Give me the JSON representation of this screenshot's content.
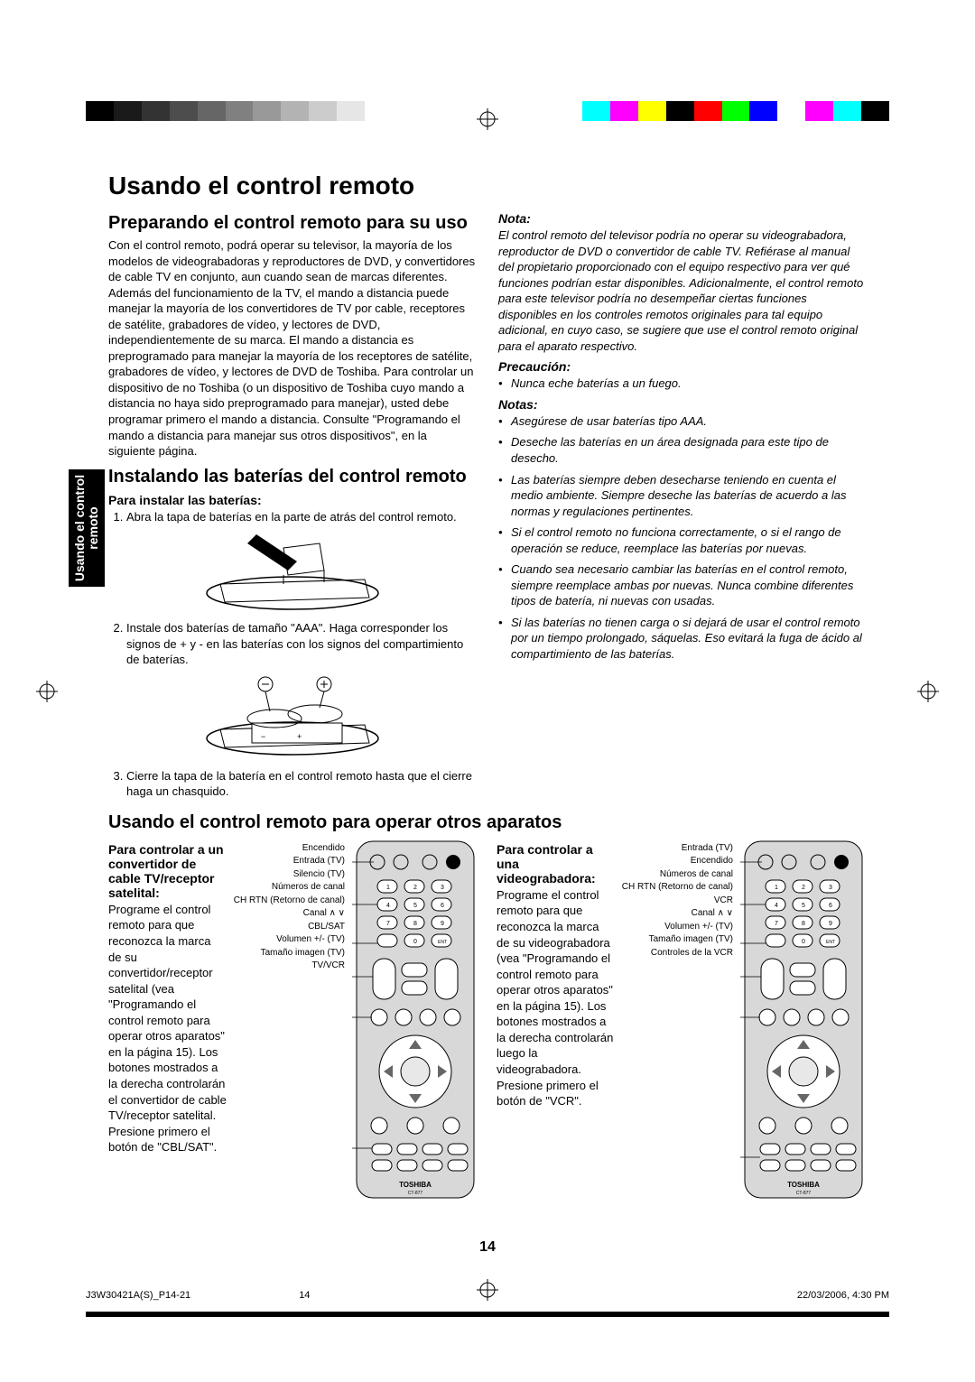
{
  "colorbar_left": [
    "#000000",
    "#1a1a1a",
    "#333333",
    "#4d4d4d",
    "#666666",
    "#808080",
    "#999999",
    "#b3b3b3",
    "#cccccc",
    "#e6e6e6",
    "#ffffff"
  ],
  "colorbar_right": [
    "#00ffff",
    "#ff00ff",
    "#ffff00",
    "#000000",
    "#ff0000",
    "#00ff00",
    "#0000ff",
    "#ffffff",
    "#ff00ff",
    "#00ffff",
    "#000000"
  ],
  "title": "Usando el control remoto",
  "tab_label": "Usando el control\nremoto",
  "section1": {
    "heading": "Preparando el control remoto para su uso",
    "body": "Con el control remoto, podrá operar su televisor, la mayoría de los modelos de videograbadoras y reproductores de DVD, y convertidores de cable TV en conjunto, aun cuando sean de marcas diferentes. Además del funcionamiento de la TV, el mando a distancia puede manejar la mayoría de los convertidores de TV por cable, receptores de satélite, grabadores de vídeo, y lectores de DVD, independientemente de su marca. El mando a distancia es preprogramado para manejar la mayoría de los receptores de satélite, grabadores de vídeo, y lectores de DVD de Toshiba. Para controlar un dispositivo de no Toshiba (o un dispositivo de Toshiba cuyo mando a distancia no haya sido preprogramado para manejar), usted debe programar primero el mando a distancia. Consulte \"Programando el mando a distancia para manejar sus otros dispositivos\", en la siguiente página."
  },
  "section2": {
    "heading": "Instalando las baterías del control remoto",
    "subheading": "Para instalar las baterías:",
    "step1": "Abra la tapa de baterías en la parte de atrás del control remoto.",
    "step2": "Instale dos baterías de tamaño \"AAA\". Haga corresponder los signos de + y - en las baterías con los signos del compartimiento de baterías.",
    "step3": "Cierre la tapa de la batería en el control remoto hasta que el cierre haga un chasquido."
  },
  "nota": {
    "heading": "Nota:",
    "body": "El control remoto del televisor podría no operar su videograbadora, reproductor de DVD o convertidor de cable TV. Refiérase al manual del propietario proporcionado con el equipo respectivo para ver qué funciones podrían estar disponibles. Adicionalmente, el control remoto para este televisor podría no desempeñar ciertas funciones disponibles en los controles remotos originales para tal equipo adicional, en cuyo caso, se sugiere que use el control remoto original para el aparato respectivo."
  },
  "precaucion": {
    "heading": "Precaución:",
    "items": [
      "Nunca eche baterías a un fuego."
    ]
  },
  "notas": {
    "heading": "Notas:",
    "items": [
      "Asegúrese de usar baterías tipo AAA.",
      "Deseche las baterías en un área designada para este tipo de desecho.",
      "Las baterías siempre deben desecharse teniendo en cuenta el medio ambiente. Siempre deseche las baterías de acuerdo a las normas y regulaciones pertinentes.",
      "Si el control remoto no funciona correctamente, o si el rango de operación se reduce, reemplace las baterías por nuevas.",
      "Cuando sea necesario cambiar las baterías en el control remoto, siempre reemplace ambas por nuevas. Nunca combine diferentes tipos de batería, ni nuevas con usadas.",
      "Si las baterías no tienen carga o si dejará de usar el control remoto por un tiempo prolongado, sáquelas. Eso evitará la fuga de ácido al compartimiento de las baterías."
    ]
  },
  "section3": {
    "heading": "Usando el control remoto para operar otros aparatos",
    "block1": {
      "title": "Para controlar a un convertidor de cable TV/receptor satelital:",
      "body": "Programe el control remoto para que reconozca la marca de su convertidor/receptor satelital (vea \"Programando el control remoto para operar otros aparatos\" en la página 15). Los botones mostrados a la derecha controlarán el convertidor de cable TV/receptor satelital. Presione primero el botón de \"CBL/SAT\".",
      "labels": [
        "Encendido",
        "Entrada (TV)",
        "Silencio (TV)",
        "Números de canal",
        "CH RTN (Retorno de canal)",
        "Canal ∧ ∨",
        "CBL/SAT",
        "Volumen +/- (TV)",
        "Tamaño imagen (TV)",
        "TV/VCR"
      ]
    },
    "block2": {
      "title": "Para controlar a una videograbadora:",
      "body": "Programe el control remoto para que reconozca la marca de su videograbadora (vea \"Programando el control remoto para operar otros aparatos\" en la página 15). Los botones mostrados a la derecha controlarán luego la videograbadora. Presione primero el botón de \"VCR\".",
      "labels": [
        "Entrada (TV)",
        "Encendido",
        "Números de canal",
        "CH RTN (Retorno de canal)",
        "VCR",
        "Canal ∧ ∨",
        "Volumen +/- (TV)",
        "Tamaño imagen (TV)",
        "Controles de la VCR"
      ]
    }
  },
  "pagenum": "14",
  "footer": {
    "file": "J3W30421A(S)_P14-21",
    "pn": "14",
    "date": "22/03/2006, 4:30 PM"
  }
}
